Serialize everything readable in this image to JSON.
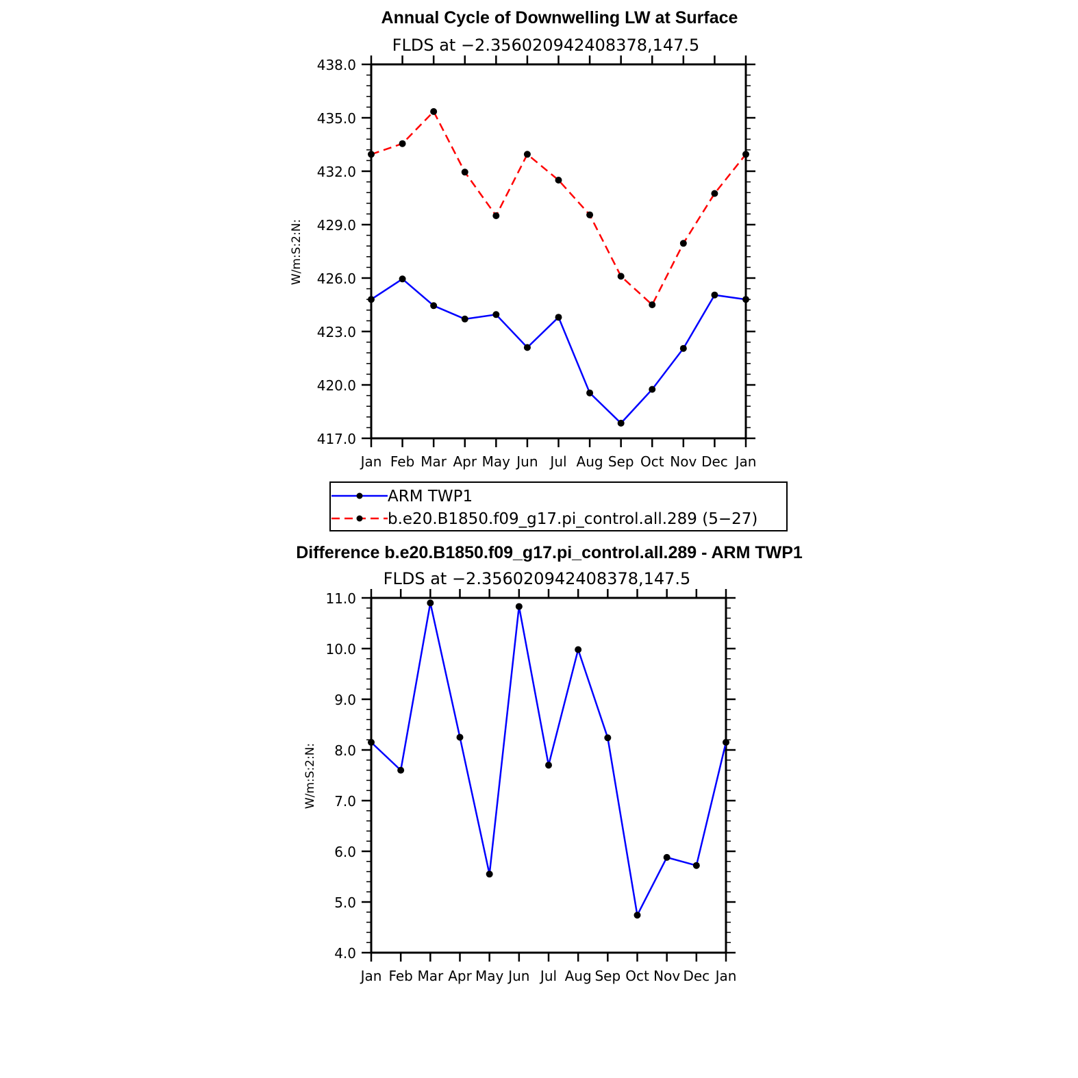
{
  "chart_data": [
    {
      "type": "line",
      "title": "Annual Cycle of Downwelling LW at Surface",
      "subtitle": "FLDS at −2.356020942408378,147.5",
      "ylabel": "W/m:S:2:N:",
      "xlabel": "",
      "categories": [
        "Jan",
        "Feb",
        "Mar",
        "Apr",
        "May",
        "Jun",
        "Jul",
        "Aug",
        "Sep",
        "Oct",
        "Nov",
        "Dec",
        "Jan"
      ],
      "ylim": [
        417.0,
        438.0
      ],
      "yticks": [
        "417.0",
        "420.0",
        "423.0",
        "426.0",
        "429.0",
        "432.0",
        "435.0",
        "438.0"
      ],
      "series": [
        {
          "name": "ARM TWP1",
          "color": "#0000ff",
          "dash": "solid",
          "values": [
            424.8,
            425.95,
            424.45,
            423.7,
            423.95,
            422.1,
            423.8,
            419.55,
            417.85,
            419.75,
            422.05,
            425.05,
            424.8
          ]
        },
        {
          "name": "b.e20.B1850.f09_g17.pi_control.all.289 (5−27)",
          "color": "#ff0000",
          "dash": "dashed",
          "values": [
            432.95,
            433.55,
            435.35,
            431.95,
            429.5,
            432.95,
            431.5,
            429.55,
            426.1,
            424.5,
            427.95,
            430.75,
            432.95
          ]
        }
      ],
      "legend": "below"
    },
    {
      "type": "line",
      "title": "Difference b.e20.B1850.f09_g17.pi_control.all.289 - ARM TWP1",
      "subtitle": "FLDS at −2.356020942408378,147.5",
      "ylabel": "W/m:S:2:N:",
      "xlabel": "",
      "categories": [
        "Jan",
        "Feb",
        "Mar",
        "Apr",
        "May",
        "Jun",
        "Jul",
        "Aug",
        "Sep",
        "Oct",
        "Nov",
        "Dec",
        "Jan"
      ],
      "ylim": [
        4.0,
        11.0
      ],
      "yticks": [
        "4.0",
        "5.0",
        "6.0",
        "7.0",
        "8.0",
        "9.0",
        "10.0",
        "11.0"
      ],
      "series": [
        {
          "name": "Difference",
          "color": "#0000ff",
          "dash": "solid",
          "values": [
            8.15,
            7.6,
            10.9,
            8.25,
            5.55,
            10.83,
            7.7,
            9.98,
            8.24,
            4.74,
            5.88,
            5.72,
            8.15
          ]
        }
      ]
    }
  ]
}
